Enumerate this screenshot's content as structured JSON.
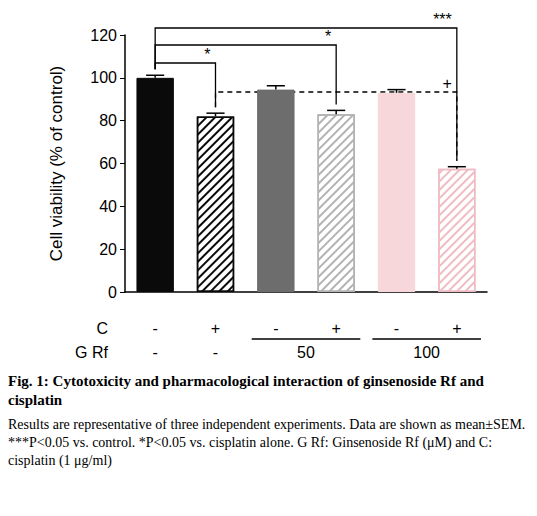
{
  "chart_data": {
    "type": "bar",
    "title": "Fig. 1: Cytotoxicity and pharmacological interaction of ginsenoside Rf and cisplatin",
    "subtitle": "Results are representative of three independent experiments. Data are shown as mean±SEM. ***P<0.05 vs. control. *P<0.05 vs. cisplatin alone. G Rf: Ginsenoside Rf (μM) and C: cisplatin (1 μg/ml)",
    "y_label": "Cell viability (% of control)",
    "category_label": "C",
    "categories": [
      "-",
      "+",
      "-",
      "+",
      "-",
      "+"
    ],
    "group_row": {
      "label": "G Rf",
      "values": [
        "-",
        "-",
        "50",
        null,
        "100",
        null
      ]
    },
    "values": [
      100,
      82,
      94.5,
      83,
      93,
      57.5
    ],
    "errors": [
      1.2,
      1.5,
      1.8,
      1.8,
      1.5,
      1
    ],
    "colors": [
      "#0a0a0a",
      "#0a0a0a",
      "#6d6d6d",
      "#b3b3b3",
      "#f7d7da",
      "#f0bcc4"
    ],
    "ylim": [
      0,
      120
    ],
    "yticks": [
      0,
      20,
      40,
      60,
      80,
      100,
      120
    ],
    "grid": false,
    "comparisons": [
      {
        "from": 0,
        "to": 1,
        "label": "*",
        "line_style": "solid"
      },
      {
        "from": 0,
        "to": 3,
        "label": "*",
        "line_style": "solid"
      },
      {
        "from": 0,
        "to": 5,
        "label": "***",
        "line_style": "solid"
      },
      {
        "from": 1,
        "to": 5,
        "label": "+",
        "line_style": "dashed"
      }
    ]
  }
}
